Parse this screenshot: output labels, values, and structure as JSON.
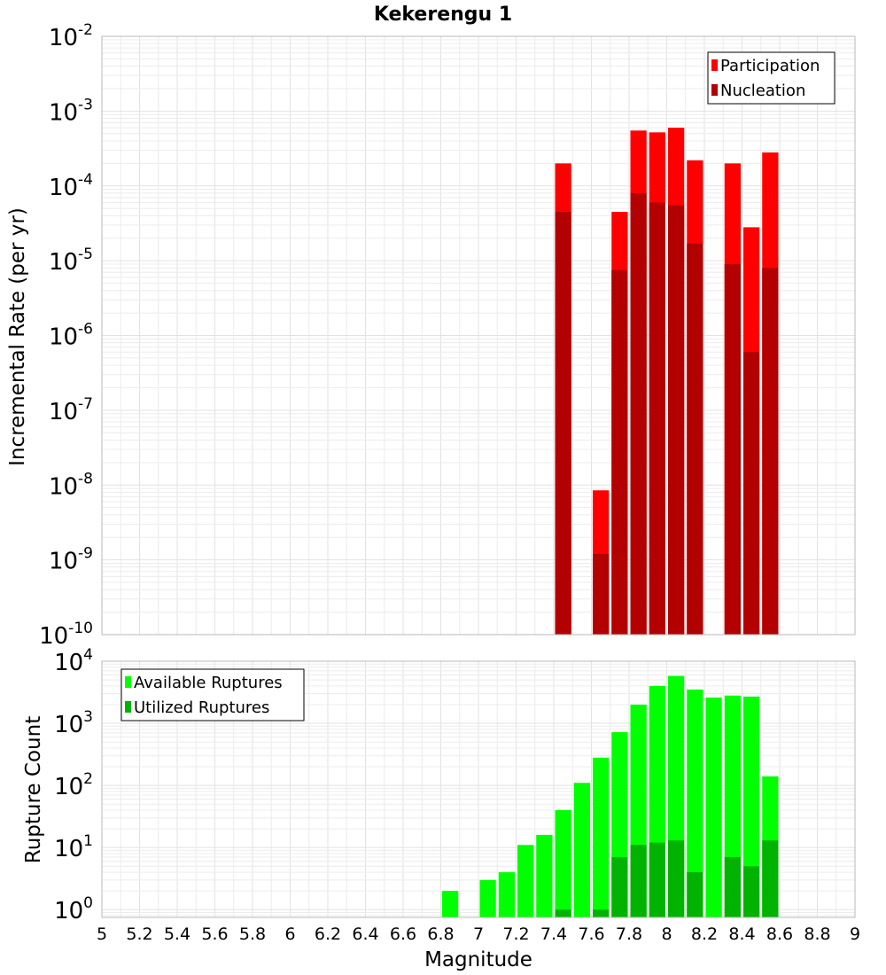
{
  "chart_data": [
    {
      "type": "bar",
      "title": "Kekerengu 1",
      "ylabel": "Incremental Rate (per yr)",
      "xlabel": "",
      "y_scale": "log",
      "ylim": [
        1e-10,
        0.01
      ],
      "xlim": [
        5,
        9
      ],
      "grid": true,
      "legend_position": "top-right",
      "bar_width": 0.1,
      "x": [
        7.45,
        7.65,
        7.75,
        7.85,
        7.95,
        8.05,
        8.15,
        8.35,
        8.45,
        8.55
      ],
      "series": [
        {
          "name": "Participation",
          "color": "#ff0000",
          "values": [
            0.0002,
            8.5e-09,
            4.5e-05,
            0.00055,
            0.00052,
            0.0006,
            0.00022,
            0.0002,
            2.8e-05,
            0.00028
          ]
        },
        {
          "name": "Nucleation",
          "color": "#b30000",
          "values": [
            4.5e-05,
            1.2e-09,
            7.5e-06,
            8e-05,
            6e-05,
            5.5e-05,
            1.7e-05,
            9e-06,
            6e-07,
            8e-06
          ]
        }
      ],
      "y_ticks": [
        {
          "base": "10",
          "exp": "-10"
        },
        {
          "base": "10",
          "exp": "-9"
        },
        {
          "base": "10",
          "exp": "-8"
        },
        {
          "base": "10",
          "exp": "-7"
        },
        {
          "base": "10",
          "exp": "-6"
        },
        {
          "base": "10",
          "exp": "-5"
        },
        {
          "base": "10",
          "exp": "-4"
        },
        {
          "base": "10",
          "exp": "-3"
        },
        {
          "base": "10",
          "exp": "-2"
        }
      ]
    },
    {
      "type": "bar",
      "title": "",
      "ylabel": "Rupture Count",
      "xlabel": "Magnitude",
      "y_scale": "log",
      "ylim": [
        0.75,
        10000
      ],
      "xlim": [
        5,
        9
      ],
      "grid": true,
      "legend_position": "top-left",
      "bar_width": 0.1,
      "x": [
        6.85,
        7.05,
        7.15,
        7.25,
        7.35,
        7.45,
        7.55,
        7.65,
        7.75,
        7.85,
        7.95,
        8.05,
        8.15,
        8.25,
        8.35,
        8.45,
        8.55
      ],
      "series": [
        {
          "name": "Available Ruptures",
          "color": "#00ff00",
          "values": [
            2,
            3,
            4,
            11,
            16,
            40,
            110,
            280,
            720,
            2000,
            4000,
            5800,
            3500,
            2600,
            2800,
            2700,
            140
          ]
        },
        {
          "name": "Utilized Ruptures",
          "color": "#00b300",
          "values": [
            0,
            0,
            0,
            0,
            0,
            1,
            0,
            1,
            7,
            11,
            12,
            13,
            4,
            0,
            7,
            5,
            13
          ]
        }
      ],
      "x_tick_labels": [
        "5",
        "5.2",
        "5.4",
        "5.6",
        "5.8",
        "6",
        "6.2",
        "6.4",
        "6.6",
        "6.8",
        "7",
        "7.2",
        "7.4",
        "7.6",
        "7.8",
        "8",
        "8.2",
        "8.4",
        "8.6",
        "8.8",
        "9"
      ],
      "y_ticks": [
        {
          "base": "10",
          "exp": "0"
        },
        {
          "base": "10",
          "exp": "1"
        },
        {
          "base": "10",
          "exp": "2"
        },
        {
          "base": "10",
          "exp": "3"
        },
        {
          "base": "10",
          "exp": "4"
        }
      ]
    }
  ]
}
